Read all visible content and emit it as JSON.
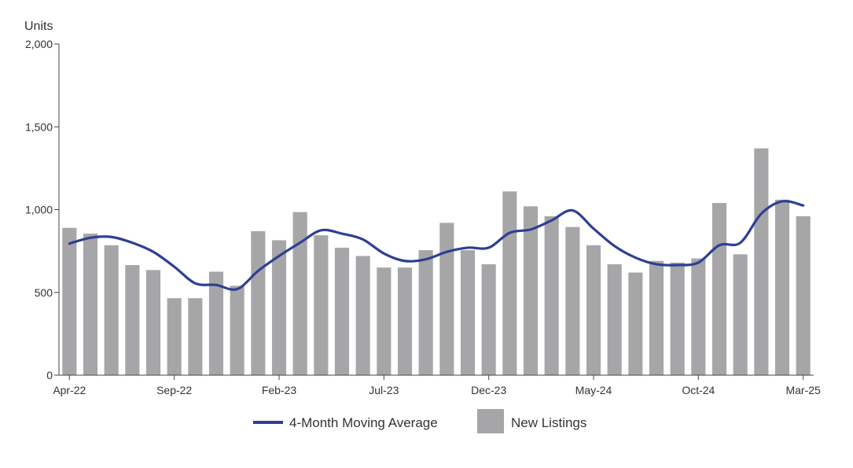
{
  "chart_data": {
    "type": "bar",
    "ylabel": "Units",
    "ylim": [
      0,
      2000
    ],
    "yticks": [
      0,
      500,
      1000,
      1500,
      2000
    ],
    "ytick_labels": [
      "0",
      "500",
      "1,000",
      "1,500",
      "2,000"
    ],
    "categories": [
      "Apr-22",
      "May-22",
      "Jun-22",
      "Jul-22",
      "Aug-22",
      "Sep-22",
      "Oct-22",
      "Nov-22",
      "Dec-22",
      "Jan-23",
      "Feb-23",
      "Mar-23",
      "Apr-23",
      "May-23",
      "Jun-23",
      "Jul-23",
      "Aug-23",
      "Sep-23",
      "Oct-23",
      "Nov-23",
      "Dec-23",
      "Jan-24",
      "Feb-24",
      "Mar-24",
      "Apr-24",
      "May-24",
      "Jun-24",
      "Jul-24",
      "Aug-24",
      "Sep-24",
      "Oct-24",
      "Nov-24",
      "Dec-24",
      "Jan-25",
      "Feb-25",
      "Mar-25"
    ],
    "xtick_labels": [
      {
        "index": 0,
        "label": "Apr-22"
      },
      {
        "index": 5,
        "label": "Sep-22"
      },
      {
        "index": 10,
        "label": "Feb-23"
      },
      {
        "index": 15,
        "label": "Jul-23"
      },
      {
        "index": 20,
        "label": "Dec-23"
      },
      {
        "index": 25,
        "label": "May-24"
      },
      {
        "index": 30,
        "label": "Oct-24"
      },
      {
        "index": 35,
        "label": "Mar-25"
      }
    ],
    "series": [
      {
        "name": "New Listings",
        "type": "bar",
        "color": "#a6a6a8",
        "values": [
          890,
          855,
          785,
          665,
          635,
          465,
          465,
          625,
          540,
          870,
          815,
          985,
          845,
          770,
          720,
          650,
          650,
          755,
          920,
          755,
          670,
          1110,
          1020,
          960,
          895,
          785,
          670,
          620,
          690,
          680,
          705,
          1040,
          730,
          1370,
          1060,
          960
        ]
      },
      {
        "name": "4-Month Moving Average",
        "type": "line",
        "color": "#2e3f94",
        "values": [
          795,
          830,
          835,
          800,
          745,
          655,
          555,
          545,
          520,
          630,
          720,
          800,
          875,
          855,
          820,
          735,
          690,
          700,
          745,
          770,
          770,
          860,
          880,
          935,
          995,
          885,
          780,
          710,
          670,
          665,
          680,
          785,
          800,
          975,
          1050,
          1025
        ]
      }
    ],
    "legend": {
      "position": "bottom",
      "items": [
        {
          "label": "4-Month Moving Average",
          "kind": "line",
          "color": "#2e3f94"
        },
        {
          "label": "New Listings",
          "kind": "box",
          "color": "#a6a6a8"
        }
      ]
    },
    "grid": false
  }
}
